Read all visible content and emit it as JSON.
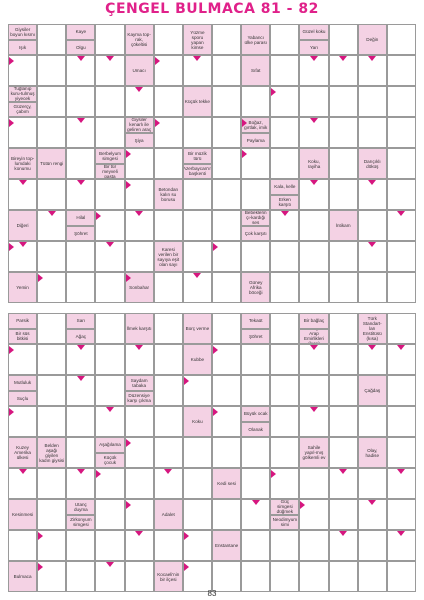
{
  "title": "ÇENGEL BULMACA 81 - 82",
  "page_number": "83",
  "puzzles": [
    {
      "name": "puzzle-81",
      "top": 24,
      "rows": 9,
      "cols": 14,
      "clues": [
        {
          "r": 0,
          "c": 0,
          "h": 0.5,
          "text": "Giysiler boyun kısmı"
        },
        {
          "r": 0.5,
          "c": 0,
          "h": 0.5,
          "text": "Işık"
        },
        {
          "r": 0,
          "c": 2,
          "h": 0.5,
          "text": "Kaye"
        },
        {
          "r": 0.5,
          "c": 2,
          "h": 0.5,
          "text": "Olgu"
        },
        {
          "r": 0,
          "c": 4,
          "h": 1,
          "text": "Kayma top-rak, çökeltisi"
        },
        {
          "r": 0,
          "c": 6,
          "h": 1,
          "text": "Yüzme sporu yapan kimse"
        },
        {
          "r": 0,
          "c": 8,
          "h": 1,
          "text": "Yabancı ülke parası"
        },
        {
          "r": 0,
          "c": 10,
          "h": 0.5,
          "text": "Güzel koku"
        },
        {
          "r": 0.5,
          "c": 10,
          "h": 0.5,
          "text": "Yarı"
        },
        {
          "r": 0,
          "c": 12,
          "h": 1,
          "text": "Değin"
        },
        {
          "r": 1,
          "c": 4,
          "h": 1,
          "text": "Umacı"
        },
        {
          "r": 1,
          "c": 8,
          "h": 1,
          "text": "Sıfat"
        },
        {
          "r": 2,
          "c": 0,
          "h": 0.5,
          "text": "Tuğlanıp kuru-tulmuş yiyecek"
        },
        {
          "r": 2.5,
          "c": 0,
          "h": 0.5,
          "text": "Güzerçy, çabım"
        },
        {
          "r": 2,
          "c": 6,
          "h": 1,
          "text": "Küçük tekke"
        },
        {
          "r": 3,
          "c": 4,
          "h": 0.5,
          "text": "Giysiler kenarlı ile geliren araç"
        },
        {
          "r": 3.5,
          "c": 4,
          "h": 0.5,
          "text": "Şiya"
        },
        {
          "r": 3,
          "c": 8,
          "h": 0.5,
          "text": "Boğaz, gırtlak, imik"
        },
        {
          "r": 3.5,
          "c": 8,
          "h": 0.5,
          "text": "Paylama"
        },
        {
          "r": 4,
          "c": 0,
          "h": 1,
          "text": "Bireyin top-lumdaki konumu"
        },
        {
          "r": 4,
          "c": 1,
          "h": 1,
          "text": "Tütün rengi"
        },
        {
          "r": 4,
          "c": 3,
          "h": 0.5,
          "text": "Berbelyum simgesi"
        },
        {
          "r": 4.5,
          "c": 3,
          "h": 0.5,
          "text": "Bir tür meyveli pasta"
        },
        {
          "r": 4,
          "c": 6,
          "h": 0.5,
          "text": "Bir müzik türü"
        },
        {
          "r": 4.5,
          "c": 6,
          "h": 0.5,
          "text": "Azerbaycan'ın başkenti"
        },
        {
          "r": 4,
          "c": 10,
          "h": 1,
          "text": "Koku, rayiha"
        },
        {
          "r": 4,
          "c": 12,
          "h": 1,
          "text": "Darıçıklı döküş"
        },
        {
          "r": 5,
          "c": 5,
          "h": 1,
          "text": "Betondan kalın su borusu"
        },
        {
          "r": 5,
          "c": 9,
          "h": 0.5,
          "text": "Kala, kelle"
        },
        {
          "r": 5.5,
          "c": 9,
          "h": 0.5,
          "text": "Erken karşıtı"
        },
        {
          "r": 6,
          "c": 0,
          "h": 1,
          "text": "Diğeri"
        },
        {
          "r": 6,
          "c": 2,
          "h": 0.5,
          "text": "Hilal"
        },
        {
          "r": 6.5,
          "c": 2,
          "h": 0.5,
          "text": "Şöhret"
        },
        {
          "r": 6,
          "c": 8,
          "h": 0.5,
          "text": "Bebeklerin çı-kardığı ses"
        },
        {
          "r": 6.5,
          "c": 8,
          "h": 0.5,
          "text": "Çok karşıtı"
        },
        {
          "r": 6,
          "c": 11,
          "h": 1,
          "text": "İntikam"
        },
        {
          "r": 7,
          "c": 5,
          "h": 1,
          "text": "Karesi verilen bir sayıya eşit olan sayı"
        },
        {
          "r": 8,
          "c": 0,
          "h": 1,
          "text": "Yemin"
        },
        {
          "r": 8,
          "c": 4,
          "h": 1,
          "text": "Sonbahar"
        },
        {
          "r": 8,
          "c": 8,
          "h": 1,
          "text": "Güney Afrika böceği"
        }
      ],
      "downs": [
        [
          1,
          2
        ],
        [
          1,
          3
        ],
        [
          1,
          6
        ],
        [
          1,
          10
        ],
        [
          1,
          11
        ],
        [
          1,
          12
        ],
        [
          2,
          4
        ],
        [
          3,
          2
        ],
        [
          3,
          10
        ],
        [
          5,
          0
        ],
        [
          5,
          2
        ],
        [
          5,
          10
        ],
        [
          5,
          12
        ],
        [
          6,
          1
        ],
        [
          6,
          4
        ],
        [
          6,
          9
        ],
        [
          6,
          13
        ],
        [
          7,
          0
        ],
        [
          7,
          3
        ],
        [
          7,
          12
        ],
        [
          8,
          6
        ]
      ],
      "rights": [
        [
          1,
          0
        ],
        [
          1,
          5
        ],
        [
          2,
          9
        ],
        [
          3,
          0
        ],
        [
          3,
          5
        ],
        [
          3,
          8
        ],
        [
          4,
          4
        ],
        [
          4,
          8
        ],
        [
          5,
          4
        ],
        [
          6,
          3
        ],
        [
          7,
          0
        ],
        [
          7,
          7
        ],
        [
          8,
          1
        ],
        [
          8,
          4
        ]
      ]
    },
    {
      "name": "puzzle-82",
      "top": 313,
      "rows": 9,
      "cols": 14,
      "clues": [
        {
          "r": 0,
          "c": 0,
          "h": 0.5,
          "text": "Parsik"
        },
        {
          "r": 0.5,
          "c": 0,
          "h": 0.5,
          "text": "Bir süs bitkisi"
        },
        {
          "r": 0,
          "c": 2,
          "h": 0.5,
          "text": "Sarı"
        },
        {
          "r": 0.5,
          "c": 2,
          "h": 0.5,
          "text": "Ağaç"
        },
        {
          "r": 0,
          "c": 4,
          "h": 1,
          "text": "İlmek karşıtı"
        },
        {
          "r": 0,
          "c": 6,
          "h": 1,
          "text": "Borç verme"
        },
        {
          "r": 0,
          "c": 8,
          "h": 0.5,
          "text": "Tekaüt"
        },
        {
          "r": 0.5,
          "c": 8,
          "h": 0.5,
          "text": "Şöhret"
        },
        {
          "r": 0,
          "c": 10,
          "h": 0.5,
          "text": "Bir bağlaç"
        },
        {
          "r": 0.5,
          "c": 10,
          "h": 0.5,
          "text": "Birleşik Arap Emirlikleri (kısa)"
        },
        {
          "r": 0,
          "c": 12,
          "h": 1,
          "text": "Türk Standart-ları Enstitüsü (kısa)"
        },
        {
          "r": 1,
          "c": 6,
          "h": 1,
          "text": "Kubbe"
        },
        {
          "r": 2,
          "c": 4,
          "h": 0.5,
          "text": "Saydam tabaka"
        },
        {
          "r": 2.5,
          "c": 4,
          "h": 0.5,
          "text": "Düzensiye karşı çıkma"
        },
        {
          "r": 2,
          "c": 0,
          "h": 0.5,
          "text": "Mutluluk"
        },
        {
          "r": 2.5,
          "c": 0,
          "h": 0.5,
          "text": "Suçlu"
        },
        {
          "r": 2,
          "c": 12,
          "h": 1,
          "text": "Çağdaş"
        },
        {
          "r": 3,
          "c": 6,
          "h": 1,
          "text": "Koku"
        },
        {
          "r": 3,
          "c": 8,
          "h": 0.5,
          "text": "Büyük ocak"
        },
        {
          "r": 3.5,
          "c": 8,
          "h": 0.5,
          "text": "Olanak"
        },
        {
          "r": 4,
          "c": 0,
          "h": 1,
          "text": "Kuzey Amerika ülkesi"
        },
        {
          "r": 4,
          "c": 1,
          "h": 1,
          "text": "Belden aşağı giyilen kadın giysisi"
        },
        {
          "r": 4,
          "c": 3,
          "h": 0.5,
          "text": "Aşağılama"
        },
        {
          "r": 4.5,
          "c": 3,
          "h": 0.5,
          "text": "Küçük çocuk"
        },
        {
          "r": 4,
          "c": 10,
          "h": 1,
          "text": "Sahile yapıl-mış gölkemli ev"
        },
        {
          "r": 4,
          "c": 12,
          "h": 1,
          "text": "Olay, hadise"
        },
        {
          "r": 5,
          "c": 7,
          "h": 1,
          "text": "Kedi sesi"
        },
        {
          "r": 6,
          "c": 2,
          "h": 0.5,
          "text": "Utanç duyma"
        },
        {
          "r": 6.5,
          "c": 2,
          "h": 0.5,
          "text": "Zirkonyum simgesi"
        },
        {
          "r": 6,
          "c": 0,
          "h": 1,
          "text": "Kesinmesi"
        },
        {
          "r": 6,
          "c": 5,
          "h": 1,
          "text": "Adalet"
        },
        {
          "r": 6,
          "c": 9,
          "h": 0.5,
          "text": "Güç simgesi düğmek"
        },
        {
          "r": 6.5,
          "c": 9,
          "h": 0.5,
          "text": "Neodimyum simi"
        },
        {
          "r": 7,
          "c": 7,
          "h": 1,
          "text": "Enstantane"
        },
        {
          "r": 8,
          "c": 0,
          "h": 1,
          "text": "Bulmaca"
        },
        {
          "r": 8,
          "c": 5,
          "h": 1,
          "text": "Kocaeli'nin bir ilçesi"
        }
      ],
      "downs": [
        [
          1,
          2
        ],
        [
          1,
          4
        ],
        [
          1,
          10
        ],
        [
          1,
          12
        ],
        [
          1,
          13
        ],
        [
          2,
          2
        ],
        [
          3,
          3
        ],
        [
          3,
          10
        ],
        [
          5,
          0
        ],
        [
          5,
          2
        ],
        [
          5,
          5
        ],
        [
          5,
          11
        ],
        [
          5,
          13
        ],
        [
          6,
          8
        ],
        [
          6,
          12
        ],
        [
          7,
          4
        ],
        [
          7,
          11
        ],
        [
          7,
          13
        ],
        [
          8,
          3
        ]
      ],
      "rights": [
        [
          1,
          0
        ],
        [
          1,
          7
        ],
        [
          2,
          6
        ],
        [
          3,
          0
        ],
        [
          3,
          7
        ],
        [
          4,
          4
        ],
        [
          5,
          3
        ],
        [
          5,
          9
        ],
        [
          6,
          4
        ],
        [
          6,
          10
        ],
        [
          7,
          1
        ],
        [
          7,
          6
        ],
        [
          8,
          1
        ],
        [
          8,
          6
        ]
      ]
    }
  ]
}
